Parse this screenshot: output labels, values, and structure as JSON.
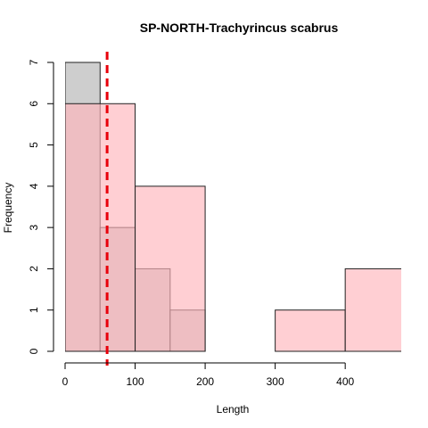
{
  "chart_data": {
    "type": "histogram",
    "title": "SP-NORTH-Trachyrincus scabrus",
    "xlabel": "Length",
    "ylabel": "Frequency",
    "xlim": [
      0,
      480
    ],
    "ylim": [
      0,
      7
    ],
    "x_ticks": [
      0,
      100,
      200,
      300,
      400
    ],
    "y_ticks": [
      0,
      1,
      2,
      3,
      4,
      5,
      6,
      7
    ],
    "grid": false,
    "series": [
      {
        "color": "#C9C9C9",
        "bins": [
          {
            "start": 0,
            "end": 50,
            "count": 7
          },
          {
            "start": 50,
            "end": 100,
            "count": 3
          },
          {
            "start": 100,
            "end": 150,
            "count": 2
          },
          {
            "start": 150,
            "end": 200,
            "count": 1
          }
        ]
      },
      {
        "color": "#FFB6BB",
        "bins": [
          {
            "start": 0,
            "end": 100,
            "count": 6
          },
          {
            "start": 100,
            "end": 200,
            "count": 4
          },
          {
            "start": 200,
            "end": 300,
            "count": 0
          },
          {
            "start": 300,
            "end": 400,
            "count": 1
          },
          {
            "start": 400,
            "end": 500,
            "count": 2
          }
        ]
      }
    ],
    "reference_line": {
      "x": 60,
      "color": "#E8000B",
      "style": "dashed"
    }
  }
}
